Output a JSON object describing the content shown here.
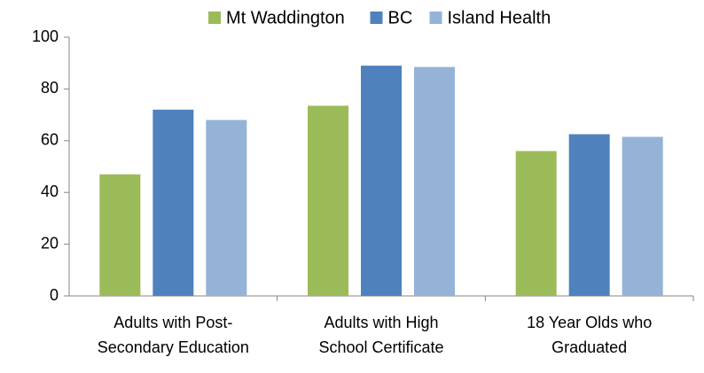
{
  "chart_data": {
    "type": "bar",
    "categories": [
      [
        "Adults with Post-",
        "Secondary Education"
      ],
      [
        "Adults with High",
        "School Certificate"
      ],
      [
        "18 Year Olds who",
        "Graduated"
      ]
    ],
    "series": [
      {
        "name": "Mt Waddington",
        "color": "#9bbb59",
        "values": [
          47,
          73.5,
          56
        ]
      },
      {
        "name": "BC",
        "color": "#4f81bd",
        "values": [
          72,
          89,
          62.5
        ]
      },
      {
        "name": "Island Health",
        "color": "#95b3d7",
        "values": [
          68,
          88.5,
          61.5
        ]
      }
    ],
    "ylim": [
      0,
      100
    ],
    "yticks": [
      0,
      20,
      40,
      60,
      80,
      100
    ],
    "grid": false,
    "legend": "top"
  }
}
